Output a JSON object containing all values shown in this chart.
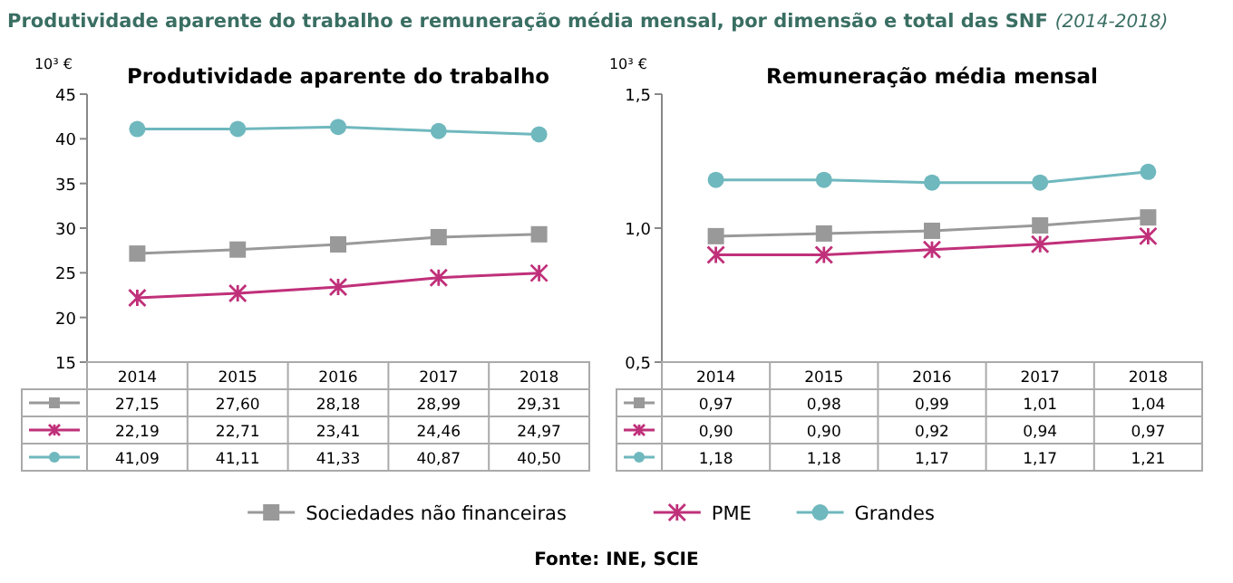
{
  "chart_data": [
    {
      "type": "line",
      "title": "Produtividade aparente do trabalho",
      "ylabel": "10³ €",
      "categories": [
        "2014",
        "2015",
        "2016",
        "2017",
        "2018"
      ],
      "ylim": [
        15,
        45
      ],
      "yticks": [
        15,
        20,
        25,
        30,
        35,
        40,
        45
      ],
      "legend": "bottom",
      "grid": false,
      "annotations": [
        "Produtividade aparente do trabalho e remuneração média mensal, por dimensão e total das SNF",
        "(2014-2018)",
        "Fonte: INE, SCIE"
      ],
      "series": [
        {
          "name": "Sociedades não financeiras",
          "color": "#999999",
          "marker": "square",
          "values": [
            27.15,
            27.6,
            28.18,
            28.99,
            29.31
          ],
          "value_labels": [
            "27,15",
            "27,60",
            "28,18",
            "28,99",
            "29,31"
          ]
        },
        {
          "name": "PME",
          "color": "#c0307a",
          "marker": "cross",
          "values": [
            22.19,
            22.71,
            23.41,
            24.46,
            24.97
          ],
          "value_labels": [
            "22,19",
            "22,71",
            "23,41",
            "24,46",
            "24,97"
          ]
        },
        {
          "name": "Grandes",
          "color": "#6fb8be",
          "marker": "circle",
          "values": [
            41.09,
            41.11,
            41.33,
            40.87,
            40.5
          ],
          "value_labels": [
            "41,09",
            "41,11",
            "41,33",
            "40,87",
            "40,50"
          ]
        }
      ]
    },
    {
      "type": "line",
      "title": "Remuneração média mensal",
      "ylabel": "10³ €",
      "categories": [
        "2014",
        "2015",
        "2016",
        "2017",
        "2018"
      ],
      "ylim": [
        0.5,
        1.5
      ],
      "yticks": [
        {
          "value": 0.5,
          "label": "0,5"
        },
        {
          "value": 1.0,
          "label": "1,0"
        },
        {
          "value": 1.5,
          "label": "1,5"
        }
      ],
      "grid": false,
      "series": [
        {
          "color": "#999999",
          "marker": "square",
          "values": [
            0.97,
            0.98,
            0.99,
            1.01,
            1.04
          ],
          "value_labels": [
            "0,97",
            "0,98",
            "0,99",
            "1,01",
            "1,04"
          ]
        },
        {
          "color": "#c0307a",
          "marker": "cross",
          "values": [
            0.9,
            0.9,
            0.92,
            0.94,
            0.97
          ],
          "value_labels": [
            "0,90",
            "0,90",
            "0,92",
            "0,94",
            "0,97"
          ]
        },
        {
          "color": "#6fb8be",
          "marker": "circle",
          "values": [
            1.18,
            1.18,
            1.17,
            1.17,
            1.21
          ],
          "value_labels": [
            "1,18",
            "1,18",
            "1,17",
            "1,17",
            "1,21"
          ]
        }
      ]
    }
  ]
}
